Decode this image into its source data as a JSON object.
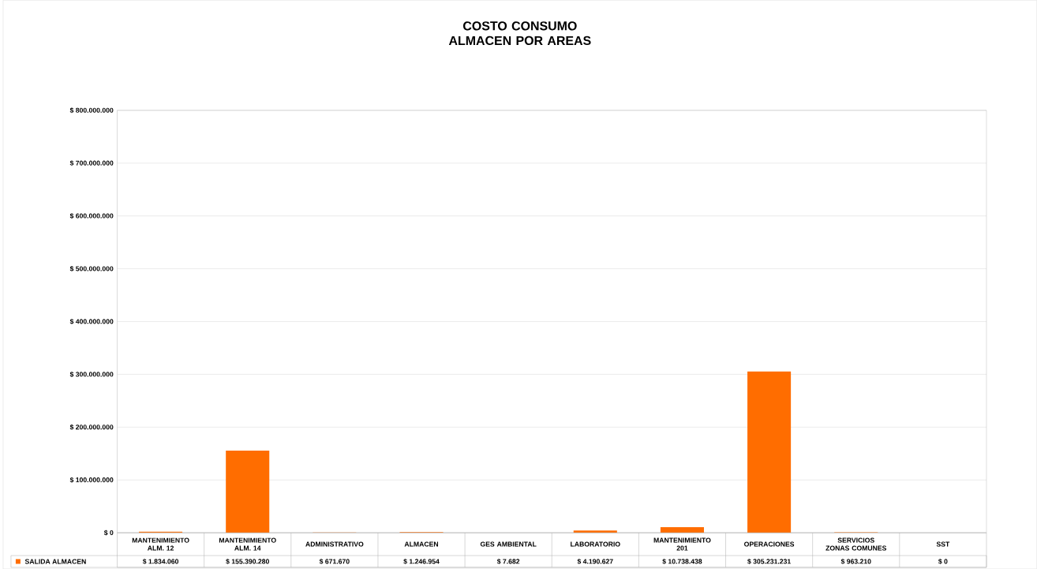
{
  "chart_data": {
    "type": "bar",
    "title": "COSTO CONSUMO ALMACEN POR AREAS",
    "categories": [
      "MANTENIMIENTO ALM. 12",
      "MANTENIMIENTO ALM. 14",
      "ADMINISTRATIVO",
      "ALMACEN",
      "GES AMBIENTAL",
      "LABORATORIO",
      "MANTENIMIENTO 201",
      "OPERACIONES",
      "SERVICIOS ZONAS COMUNES",
      "SST"
    ],
    "series": [
      {
        "name": "SALIDA ALMACEN",
        "color": "#ff6d00",
        "values": [
          1834060,
          155390280,
          671670,
          1246954,
          7682,
          4190627,
          10738438,
          305231231,
          963210,
          0
        ],
        "value_labels": [
          "$ 1.834.060",
          "$ 155.390.280",
          "$ 671.670",
          "$ 1.246.954",
          "$ 7.682",
          "$ 4.190.627",
          "$ 10.738.438",
          "$ 305.231.231",
          "$ 963.210",
          "$ 0"
        ]
      }
    ],
    "ylim": [
      0,
      800000000
    ],
    "yticks": [
      {
        "value": 0,
        "label": "$ 0"
      },
      {
        "value": 100000000,
        "label": "$ 100.000.000"
      },
      {
        "value": 200000000,
        "label": "$ 200.000.000"
      },
      {
        "value": 300000000,
        "label": "$ 300.000.000"
      },
      {
        "value": 400000000,
        "label": "$ 400.000.000"
      },
      {
        "value": 500000000,
        "label": "$ 500.000.000"
      },
      {
        "value": 600000000,
        "label": "$ 600.000.000"
      },
      {
        "value": 700000000,
        "label": "$ 700.000.000"
      },
      {
        "value": 800000000,
        "label": "$ 800.000.000"
      }
    ],
    "grid": "y",
    "legend": "bottom left"
  }
}
